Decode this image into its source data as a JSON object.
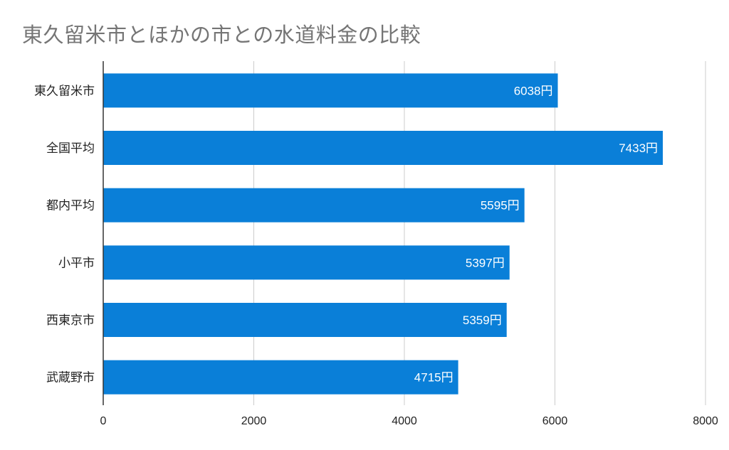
{
  "chart_data": {
    "type": "bar",
    "orientation": "horizontal",
    "title": "東久留米市とほかの市との水道料金の比較",
    "categories": [
      "東久留米市",
      "全国平均",
      "都内平均",
      "小平市",
      "西東京市",
      "武蔵野市"
    ],
    "values": [
      6038,
      7433,
      5595,
      5397,
      5359,
      4715
    ],
    "data_labels": [
      "6038円",
      "7433円",
      "5595円",
      "5397円",
      "5359円",
      "4715円"
    ],
    "xlim": [
      0,
      8000
    ],
    "xticks": [
      "0",
      "2000",
      "4000",
      "6000",
      "8000"
    ],
    "xtick_values": [
      0,
      2000,
      4000,
      6000,
      8000
    ],
    "grid": true,
    "bar_color": "#0a7fd8",
    "title_color": "#757575"
  }
}
